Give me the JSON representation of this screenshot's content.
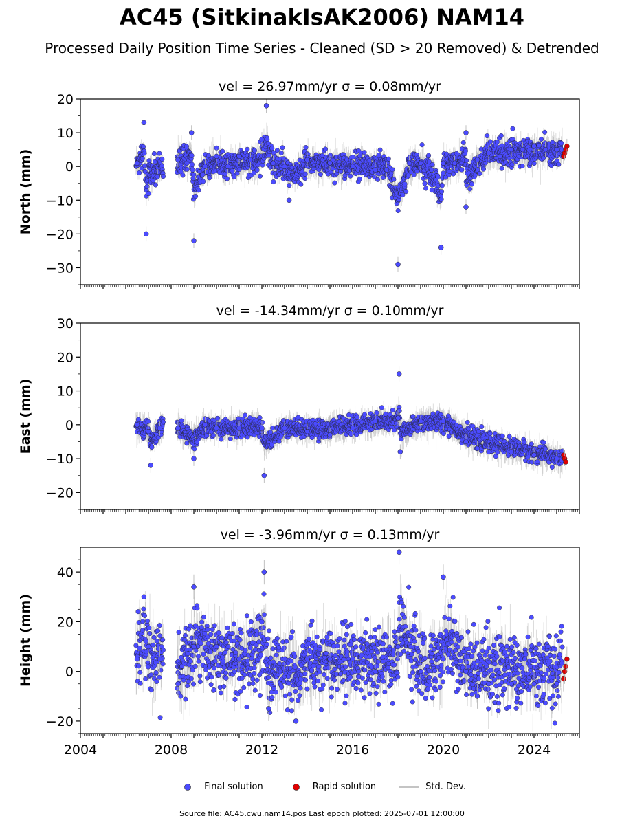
{
  "header": {
    "title": "AC45 (SitkinakIsAK2006) NAM14",
    "subtitle": "Processed Daily Position Time Series - Cleaned (SD > 20 Removed) & Detrended"
  },
  "legend": {
    "final_label": "Final solution",
    "rapid_label": "Rapid solution",
    "sd_label": "Std. Dev."
  },
  "footer": {
    "text": "Source file: AC45.cwu.nam14.pos  Last epoch plotted: 2025-07-01 12:00:00"
  },
  "colors": {
    "final": "#4b4bff",
    "rapid": "#e00000",
    "stddev": "#b0b0b0"
  },
  "chart_data": [
    {
      "type": "scatter",
      "component": "North",
      "title_text": "vel = 26.97mm/yr   σ = 0.08mm/yr",
      "ylabel": "North (mm)",
      "xlim": [
        2004,
        2026
      ],
      "ylim": [
        -35,
        20
      ],
      "yticks": [
        -30,
        -20,
        -10,
        0,
        10,
        20
      ],
      "xticks": [
        2004,
        2008,
        2012,
        2016,
        2020,
        2024
      ],
      "series": [
        {
          "name": "Final solution",
          "points": [
            [
              2006.5,
              1
            ],
            [
              2006.8,
              13
            ],
            [
              2006.9,
              -20
            ],
            [
              2007.0,
              -8
            ],
            [
              2007.4,
              -3
            ],
            [
              2008.3,
              2
            ],
            [
              2008.9,
              10
            ],
            [
              2009.0,
              -22
            ],
            [
              2009.5,
              0
            ],
            [
              2010.0,
              3
            ],
            [
              2010.5,
              0
            ],
            [
              2011.0,
              3
            ],
            [
              2011.5,
              2
            ],
            [
              2012.0,
              8
            ],
            [
              2012.2,
              18
            ],
            [
              2012.5,
              1
            ],
            [
              2013.0,
              0
            ],
            [
              2013.2,
              -10
            ],
            [
              2014.0,
              2
            ],
            [
              2015.0,
              1
            ],
            [
              2016.0,
              0
            ],
            [
              2017.0,
              -1
            ],
            [
              2017.5,
              -1
            ],
            [
              2018.0,
              -29
            ],
            [
              2018.5,
              1
            ],
            [
              2019.0,
              1
            ],
            [
              2019.5,
              -7
            ],
            [
              2019.9,
              -24
            ],
            [
              2020.0,
              1
            ],
            [
              2020.5,
              1
            ],
            [
              2021.0,
              10
            ],
            [
              2021.0,
              -12
            ],
            [
              2021.5,
              2
            ],
            [
              2022.0,
              4
            ],
            [
              2022.5,
              3
            ],
            [
              2023.0,
              5
            ],
            [
              2023.5,
              5
            ],
            [
              2024.0,
              6
            ],
            [
              2024.5,
              5
            ],
            [
              2025.0,
              5
            ]
          ],
          "x": [],
          "y": []
        },
        {
          "name": "Rapid solution",
          "points": [
            [
              2025.3,
              3
            ],
            [
              2025.35,
              4
            ],
            [
              2025.4,
              5
            ],
            [
              2025.45,
              6
            ]
          ]
        }
      ]
    },
    {
      "type": "scatter",
      "component": "East",
      "title_text": "vel = -14.34mm/yr   σ = 0.10mm/yr",
      "ylabel": "East (mm)",
      "xlim": [
        2004,
        2026
      ],
      "ylim": [
        -25,
        30
      ],
      "yticks": [
        -20,
        -10,
        0,
        10,
        20,
        30
      ],
      "xticks": [
        2004,
        2008,
        2012,
        2016,
        2020,
        2024
      ],
      "series": [
        {
          "name": "Final solution",
          "points": [
            [
              2006.5,
              0
            ],
            [
              2007.0,
              -2
            ],
            [
              2007.1,
              -12
            ],
            [
              2007.5,
              -1
            ],
            [
              2008.3,
              -1
            ],
            [
              2009.0,
              -10
            ],
            [
              2009.5,
              0
            ],
            [
              2010.0,
              -1
            ],
            [
              2011.0,
              -1
            ],
            [
              2012.0,
              -1
            ],
            [
              2012.1,
              -15
            ],
            [
              2013.0,
              -1
            ],
            [
              2014.0,
              -2
            ],
            [
              2015.0,
              -3
            ],
            [
              2016.0,
              -1
            ],
            [
              2017.0,
              1
            ],
            [
              2018.0,
              2
            ],
            [
              2018.05,
              15
            ],
            [
              2018.1,
              -8
            ],
            [
              2019.0,
              1
            ],
            [
              2020.0,
              1
            ],
            [
              2021.0,
              -5
            ],
            [
              2021.5,
              -7
            ],
            [
              2022.0,
              -8
            ],
            [
              2023.0,
              -8
            ],
            [
              2024.0,
              -9
            ],
            [
              2025.0,
              -10
            ]
          ]
        },
        {
          "name": "Rapid solution",
          "points": [
            [
              2025.3,
              -9
            ],
            [
              2025.35,
              -10
            ],
            [
              2025.4,
              -11
            ]
          ]
        }
      ]
    },
    {
      "type": "scatter",
      "component": "Height",
      "title_text": "vel = -3.96mm/yr   σ = 0.13mm/yr",
      "ylabel": "Height (mm)",
      "xlim": [
        2004,
        2026
      ],
      "ylim": [
        -25,
        50
      ],
      "yticks": [
        -20,
        0,
        20,
        40
      ],
      "xticks": [
        2004,
        2008,
        2012,
        2016,
        2020,
        2024
      ],
      "series": [
        {
          "name": "Final solution",
          "points": [
            [
              2006.5,
              5
            ],
            [
              2006.8,
              30
            ],
            [
              2007.0,
              10
            ],
            [
              2007.5,
              5
            ],
            [
              2008.3,
              -5
            ],
            [
              2009.0,
              10
            ],
            [
              2009.0,
              34
            ],
            [
              2010.0,
              10
            ],
            [
              2011.0,
              5
            ],
            [
              2012.0,
              20
            ],
            [
              2012.1,
              40
            ],
            [
              2012.3,
              -15
            ],
            [
              2013.0,
              5
            ],
            [
              2013.5,
              -20
            ],
            [
              2014.0,
              5
            ],
            [
              2015.0,
              5
            ],
            [
              2016.0,
              5
            ],
            [
              2017.0,
              0
            ],
            [
              2018.0,
              10
            ],
            [
              2018.05,
              48
            ],
            [
              2019.0,
              0
            ],
            [
              2020.0,
              5
            ],
            [
              2020.0,
              38
            ],
            [
              2021.0,
              0
            ],
            [
              2021.5,
              -10
            ],
            [
              2022.0,
              -5
            ],
            [
              2023.0,
              -5
            ],
            [
              2024.0,
              -5
            ],
            [
              2025.0,
              -5
            ]
          ]
        },
        {
          "name": "Rapid solution",
          "points": [
            [
              2025.3,
              -3
            ],
            [
              2025.35,
              0
            ],
            [
              2025.4,
              2
            ],
            [
              2025.45,
              5
            ]
          ]
        }
      ]
    }
  ]
}
